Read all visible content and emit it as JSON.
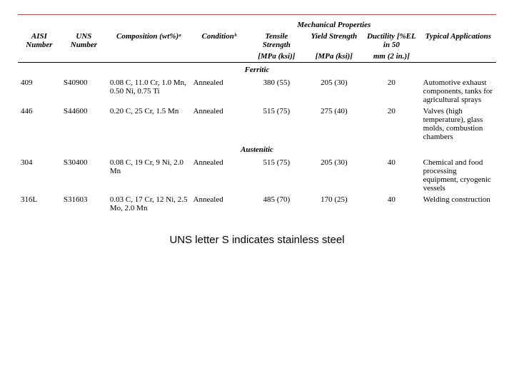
{
  "headers": {
    "group_mech": "Mechanical Properties",
    "aisi": "AISI Number",
    "uns": "UNS Number",
    "comp": "Composition (wt%)ᵃ",
    "cond": "Conditionᵇ",
    "ts1": "Tensile Strength",
    "ts2": "[MPa (ksi)]",
    "ys1": "Yield Strength",
    "ys2": "[MPa (ksi)]",
    "duct1": "Ductility [%EL in 50",
    "duct2": "mm (2 in.)]",
    "app": "Typical Applications"
  },
  "sections": {
    "ferritic": "Ferritic",
    "austenitic": "Austenitic"
  },
  "rows": {
    "r409": {
      "aisi": "409",
      "uns": "S40900",
      "comp": "0.08 C, 11.0 Cr, 1.0 Mn, 0.50 Ni, 0.75 Ti",
      "cond": "Annealed",
      "ts": "380 (55)",
      "ys": "205 (30)",
      "duct": "20",
      "app": "Automotive exhaust components, tanks for agricultural sprays"
    },
    "r446": {
      "aisi": "446",
      "uns": "S44600",
      "comp": "0.20 C, 25 Cr, 1.5 Mn",
      "cond": "Annealed",
      "ts": "515 (75)",
      "ys": "275 (40)",
      "duct": "20",
      "app": "Valves (high temperature), glass molds, combustion chambers"
    },
    "r304": {
      "aisi": "304",
      "uns": "S30400",
      "comp": "0.08 C, 19 Cr, 9 Ni, 2.0 Mn",
      "cond": "Annealed",
      "ts": "515 (75)",
      "ys": "205 (30)",
      "duct": "40",
      "app": "Chemical and food processing equipment, cryogenic vessels"
    },
    "r316L": {
      "aisi": "316L",
      "uns": "S31603",
      "comp": "0.03 C, 17 Cr, 12 Ni, 2.5 Mo, 2.0 Mn",
      "cond": "Annealed",
      "ts": "485 (70)",
      "ys": "170 (25)",
      "duct": "40",
      "app": "Welding construction"
    }
  },
  "caption": "UNS letter S indicates stainless steel"
}
